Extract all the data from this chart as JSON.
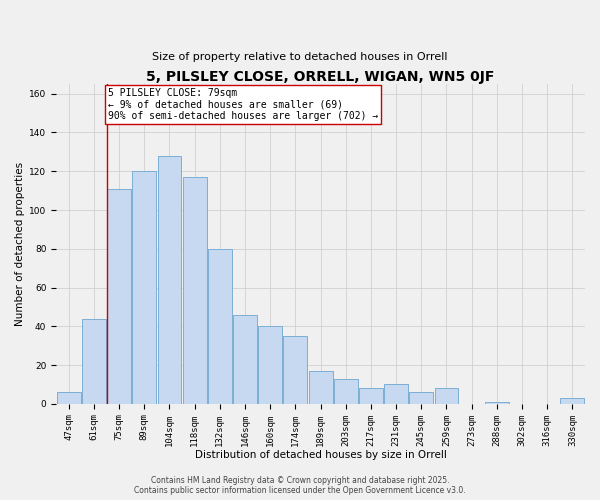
{
  "title": "5, PILSLEY CLOSE, ORRELL, WIGAN, WN5 0JF",
  "subtitle": "Size of property relative to detached houses in Orrell",
  "xlabel": "Distribution of detached houses by size in Orrell",
  "ylabel": "Number of detached properties",
  "bar_labels": [
    "47sqm",
    "61sqm",
    "75sqm",
    "89sqm",
    "104sqm",
    "118sqm",
    "132sqm",
    "146sqm",
    "160sqm",
    "174sqm",
    "189sqm",
    "203sqm",
    "217sqm",
    "231sqm",
    "245sqm",
    "259sqm",
    "273sqm",
    "288sqm",
    "302sqm",
    "316sqm",
    "330sqm"
  ],
  "bar_values": [
    6,
    44,
    111,
    120,
    128,
    117,
    80,
    46,
    40,
    35,
    17,
    13,
    8,
    10,
    6,
    8,
    0,
    1,
    0,
    0,
    3
  ],
  "bar_color": "#c6d9f0",
  "bar_edge_color": "#7bafd4",
  "vline_x_index": 2,
  "vline_color": "#cc0000",
  "annotation_text": "5 PILSLEY CLOSE: 79sqm\n← 9% of detached houses are smaller (69)\n90% of semi-detached houses are larger (702) →",
  "ylim": [
    0,
    165
  ],
  "yticks": [
    0,
    20,
    40,
    60,
    80,
    100,
    120,
    140,
    160
  ],
  "grid_color": "#d0d0d0",
  "background_color": "#f0f0f0",
  "footer_text": "Contains HM Land Registry data © Crown copyright and database right 2025.\nContains public sector information licensed under the Open Government Licence v3.0.",
  "title_fontsize": 10,
  "subtitle_fontsize": 8,
  "axis_label_fontsize": 7.5,
  "tick_fontsize": 6.5,
  "annotation_fontsize": 7,
  "footer_fontsize": 5.5
}
